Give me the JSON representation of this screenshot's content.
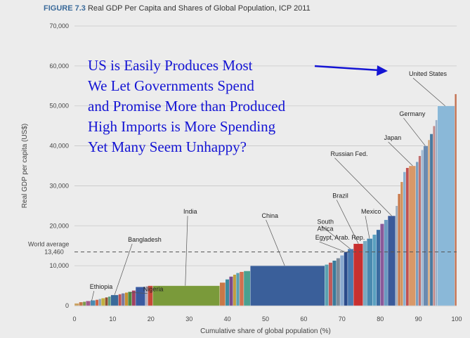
{
  "figure": {
    "label": "FIGURE 7.3",
    "title": "Real GDP Per Capita and Shares of Global Population, ICP 2011"
  },
  "overlay": {
    "lines": [
      "US is Easily Produces Most",
      "We Let Governments Spend",
      "and Promise More than Produced",
      "High Imports is More Spending",
      "Yet Many Seem Unhappy?"
    ],
    "color": "#1414d4"
  },
  "chart_data": {
    "type": "bar",
    "xlabel": "Cumulative share of global population (%)",
    "ylabel": "Real GDP per capita (US$)",
    "xlim": [
      0,
      100
    ],
    "ylim": [
      0,
      70000
    ],
    "x_ticks": [
      "0",
      "10",
      "20",
      "30",
      "40",
      "50",
      "60",
      "70",
      "80",
      "90",
      "100"
    ],
    "y_ticks": [
      "0",
      "10,000",
      "20,000",
      "30,000",
      "40,000",
      "50,000",
      "60,000",
      "70,000"
    ],
    "reference_line": {
      "label_line1": "World average",
      "label_line2": "13,460",
      "value": 13460
    },
    "bars": [
      {
        "start": 0,
        "end": 1.2,
        "value": 600,
        "color": "#c8a060"
      },
      {
        "start": 1.2,
        "end": 2.2,
        "value": 900,
        "color": "#c07848"
      },
      {
        "start": 2.2,
        "end": 3.0,
        "value": 1000,
        "color": "#7a9a4a"
      },
      {
        "start": 3.0,
        "end": 4.2,
        "value": 1200,
        "color": "#a05a8a"
      },
      {
        "start": 4.2,
        "end": 5.5,
        "value": 1350,
        "color": "#4a8ab0"
      },
      {
        "start": 5.5,
        "end": 6.3,
        "value": 1500,
        "color": "#d06040"
      },
      {
        "start": 6.3,
        "end": 7.0,
        "value": 1700,
        "color": "#8aa0b0"
      },
      {
        "start": 7.0,
        "end": 8.0,
        "value": 1900,
        "color": "#c0b040"
      },
      {
        "start": 8.0,
        "end": 8.8,
        "value": 2100,
        "color": "#905030"
      },
      {
        "start": 8.8,
        "end": 9.5,
        "value": 2300,
        "color": "#60a080"
      },
      {
        "start": 9.5,
        "end": 11.5,
        "value": 2700,
        "color": "#3a6a9a"
      },
      {
        "start": 11.5,
        "end": 12.3,
        "value": 2900,
        "color": "#c05050"
      },
      {
        "start": 12.3,
        "end": 13.2,
        "value": 3100,
        "color": "#7a7aa0"
      },
      {
        "start": 13.2,
        "end": 14.0,
        "value": 3300,
        "color": "#c89030"
      },
      {
        "start": 14.0,
        "end": 15.0,
        "value": 3500,
        "color": "#508a40"
      },
      {
        "start": 15.0,
        "end": 16.0,
        "value": 3800,
        "color": "#a04060"
      },
      {
        "start": 16.0,
        "end": 18.5,
        "value": 4700,
        "color": "#3a5aa0"
      },
      {
        "start": 18.5,
        "end": 19.2,
        "value": 4900,
        "color": "#b0b0c0"
      },
      {
        "start": 19.2,
        "end": 20.5,
        "value": 5000,
        "color": "#c84838"
      },
      {
        "start": 20.5,
        "end": 38.0,
        "value": 5000,
        "color": "#7a9a3a"
      },
      {
        "start": 38.0,
        "end": 39.5,
        "value": 5800,
        "color": "#c87848"
      },
      {
        "start": 39.5,
        "end": 40.5,
        "value": 6600,
        "color": "#3a8aa0"
      },
      {
        "start": 40.5,
        "end": 41.5,
        "value": 7300,
        "color": "#7a4a8a"
      },
      {
        "start": 41.5,
        "end": 42.3,
        "value": 7800,
        "color": "#c0a040"
      },
      {
        "start": 42.3,
        "end": 43.2,
        "value": 8200,
        "color": "#5aa0b0"
      },
      {
        "start": 43.2,
        "end": 44.3,
        "value": 8500,
        "color": "#d07050"
      },
      {
        "start": 44.3,
        "end": 46.0,
        "value": 8700,
        "color": "#4aa090"
      },
      {
        "start": 46.0,
        "end": 65.5,
        "value": 10000,
        "color": "#3a5f9a"
      },
      {
        "start": 65.5,
        "end": 66.5,
        "value": 10300,
        "color": "#5aa0b0"
      },
      {
        "start": 66.5,
        "end": 67.5,
        "value": 10800,
        "color": "#c05a5a"
      },
      {
        "start": 67.5,
        "end": 68.5,
        "value": 11300,
        "color": "#3a7a9a"
      },
      {
        "start": 68.5,
        "end": 69.5,
        "value": 11900,
        "color": "#7a8a9a"
      },
      {
        "start": 69.5,
        "end": 70.5,
        "value": 12600,
        "color": "#8aaad0"
      },
      {
        "start": 70.5,
        "end": 71.5,
        "value": 13400,
        "color": "#2a4a8a"
      },
      {
        "start": 71.5,
        "end": 73.0,
        "value": 14200,
        "color": "#4a7ab0"
      },
      {
        "start": 73.0,
        "end": 75.5,
        "value": 15500,
        "color": "#c83030"
      },
      {
        "start": 75.5,
        "end": 76.5,
        "value": 16200,
        "color": "#7aaac0"
      },
      {
        "start": 76.5,
        "end": 78.0,
        "value": 16800,
        "color": "#4a8ab0"
      },
      {
        "start": 78.0,
        "end": 79.0,
        "value": 17800,
        "color": "#5aa0c0"
      },
      {
        "start": 79.0,
        "end": 80.0,
        "value": 19000,
        "color": "#3a6aa0"
      },
      {
        "start": 80.0,
        "end": 81.0,
        "value": 20500,
        "color": "#8a5a9a"
      },
      {
        "start": 81.0,
        "end": 82.0,
        "value": 21500,
        "color": "#6a9ac0"
      },
      {
        "start": 82.0,
        "end": 84.0,
        "value": 22500,
        "color": "#3a5a9a"
      },
      {
        "start": 84.0,
        "end": 84.6,
        "value": 25000,
        "color": "#a0b0c0"
      },
      {
        "start": 84.6,
        "end": 85.3,
        "value": 28000,
        "color": "#c87848"
      },
      {
        "start": 85.3,
        "end": 86.0,
        "value": 31000,
        "color": "#d09058"
      },
      {
        "start": 86.0,
        "end": 86.7,
        "value": 33500,
        "color": "#8ab0d0"
      },
      {
        "start": 86.7,
        "end": 87.5,
        "value": 34500,
        "color": "#c05050"
      },
      {
        "start": 87.5,
        "end": 89.3,
        "value": 35000,
        "color": "#d89868"
      },
      {
        "start": 89.3,
        "end": 90.0,
        "value": 36000,
        "color": "#7aa0c0"
      },
      {
        "start": 90.0,
        "end": 90.7,
        "value": 37500,
        "color": "#c07070"
      },
      {
        "start": 90.7,
        "end": 91.3,
        "value": 39000,
        "color": "#a0b8d0"
      },
      {
        "start": 91.3,
        "end": 92.5,
        "value": 40000,
        "color": "#6a8ab0"
      },
      {
        "start": 92.5,
        "end": 93.0,
        "value": 41500,
        "color": "#d0a070"
      },
      {
        "start": 93.0,
        "end": 93.8,
        "value": 43000,
        "color": "#4a7aa0"
      },
      {
        "start": 93.8,
        "end": 94.4,
        "value": 45000,
        "color": "#c08888"
      },
      {
        "start": 94.4,
        "end": 95.0,
        "value": 46500,
        "color": "#9ab0c8"
      },
      {
        "start": 95.0,
        "end": 99.5,
        "value": 50000,
        "color": "#8ab8d8"
      },
      {
        "start": 99.5,
        "end": 100,
        "value": 53000,
        "color": "#c07050"
      }
    ],
    "annotations": [
      {
        "label": "Ethiopia",
        "x": 4,
        "y": 4200,
        "bar_x": 4.5,
        "bar_y": 1200
      },
      {
        "label": "Bangladesh",
        "x": 14,
        "y": 16000,
        "bar_x": 10.5,
        "bar_y": 2700
      },
      {
        "label": "Nigeria",
        "x": 18,
        "y": 3600,
        "bar_x": 14.5,
        "bar_y": 3300
      },
      {
        "label": "India",
        "x": 28.5,
        "y": 23000,
        "bar_x": 29,
        "bar_y": 5000
      },
      {
        "label": "China",
        "x": 49,
        "y": 22000,
        "bar_x": 55,
        "bar_y": 10000
      },
      {
        "label": "Egypt, Arab. Rep.",
        "x": 63,
        "y": 16500,
        "bar_x": 71,
        "bar_y": 13400
      },
      {
        "label": "South Africa",
        "x": 63.5,
        "y": 20500,
        "label2": "Africa",
        "bar_x": 72.2,
        "bar_y": 14200
      },
      {
        "label": "Brazil",
        "x": 67.5,
        "y": 27000,
        "bar_x": 74.3,
        "bar_y": 15500
      },
      {
        "label": "Mexico",
        "x": 75,
        "y": 23000,
        "bar_x": 77.2,
        "bar_y": 16800
      },
      {
        "label": "Russian Fed.",
        "x": 67,
        "y": 37500,
        "bar_x": 83,
        "bar_y": 22500
      },
      {
        "label": "Japan",
        "x": 81,
        "y": 41500,
        "bar_x": 88.5,
        "bar_y": 35000
      },
      {
        "label": "Germany",
        "x": 85,
        "y": 47500,
        "bar_x": 91.8,
        "bar_y": 40000
      },
      {
        "label": "United States",
        "x": 87.5,
        "y": 57500,
        "bar_x": 97,
        "bar_y": 50000
      }
    ]
  }
}
